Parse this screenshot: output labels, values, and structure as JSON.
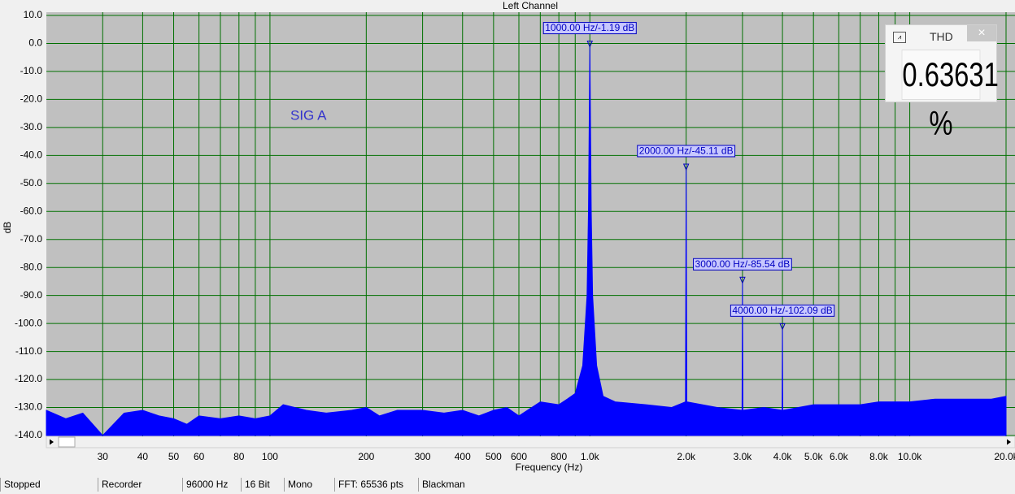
{
  "chart_data": {
    "type": "area",
    "title": "Left Channel",
    "xlabel": "Frequency (Hz)",
    "ylabel": "dB",
    "annotation": "SIG A",
    "color": "#0000ff",
    "log_x": true,
    "grid": true,
    "xlim": [
      20,
      20000
    ],
    "ylim": [
      -140,
      10
    ],
    "xticks": [
      30,
      40,
      50,
      60,
      80,
      100,
      200,
      300,
      400,
      500,
      600,
      800,
      {
        "value": 1000,
        "label": "1.0k"
      },
      {
        "value": 2000,
        "label": "2.0k"
      },
      {
        "value": 3000,
        "label": "3.0k"
      },
      {
        "value": 4000,
        "label": "4.0k"
      },
      {
        "value": 5000,
        "label": "5.0k"
      },
      {
        "value": 6000,
        "label": "6.0k"
      },
      {
        "value": 8000,
        "label": "8.0k"
      },
      {
        "value": 10000,
        "label": "10.0k"
      },
      {
        "value": 20000,
        "label": "20.0k"
      }
    ],
    "xticks_minor": [
      70,
      90,
      700,
      900,
      7000,
      9000
    ],
    "yticks": [
      {
        "value": 10,
        "label": "10.0"
      },
      {
        "value": 0,
        "label": "0.0"
      },
      {
        "value": -10,
        "label": "-10.0"
      },
      {
        "value": -20,
        "label": "-20.0"
      },
      {
        "value": -30,
        "label": "-30.0"
      },
      {
        "value": -40,
        "label": "-40.0"
      },
      {
        "value": -50,
        "label": "-50.0"
      },
      {
        "value": -60,
        "label": "-60.0"
      },
      {
        "value": -70,
        "label": "-70.0"
      },
      {
        "value": -80,
        "label": "-80.0"
      },
      {
        "value": -90,
        "label": "-90.0"
      },
      {
        "value": -100,
        "label": "-100.0"
      },
      {
        "value": -110,
        "label": "-110.0"
      },
      {
        "value": -120,
        "label": "-120.0"
      },
      {
        "value": -130,
        "label": "-130.0"
      },
      {
        "value": -140,
        "label": "-140.0"
      }
    ],
    "x": [
      20,
      23,
      26,
      30,
      35,
      40,
      45,
      50,
      55,
      60,
      70,
      80,
      90,
      100,
      110,
      130,
      150,
      180,
      200,
      220,
      250,
      300,
      350,
      400,
      450,
      500,
      550,
      600,
      700,
      800,
      850,
      900,
      950,
      980,
      990,
      1000,
      1010,
      1020,
      1050,
      1100,
      1200,
      1500,
      1800,
      1990,
      2000,
      2010,
      2500,
      2990,
      3000,
      3010,
      3500,
      3990,
      4000,
      4010,
      5000,
      6000,
      7000,
      8000,
      10000,
      12000,
      15000,
      18000,
      20000
    ],
    "values": [
      -131,
      -134,
      -132,
      -140,
      -132,
      -131,
      -133,
      -134,
      -136,
      -133,
      -134,
      -133,
      -134,
      -133,
      -129,
      -131,
      -132,
      -131,
      -130,
      -133,
      -131,
      -131,
      -132,
      -131,
      -133,
      -131,
      -130,
      -133,
      -128,
      -129,
      -127,
      -125,
      -115,
      -90,
      -60,
      -1.19,
      -60,
      -90,
      -115,
      -126,
      -128,
      -129,
      -130,
      -128,
      -45.11,
      -128,
      -130,
      -131,
      -85.54,
      -131,
      -130,
      -131,
      -102.09,
      -131,
      -129,
      -129,
      -129,
      -128,
      -128,
      -127,
      -127,
      -127,
      -126
    ],
    "markers": [
      {
        "x": 1000,
        "y": -1.19,
        "label": "1000.00 Hz/-1.19 dB"
      },
      {
        "x": 2000,
        "y": -45.11,
        "label": "2000.00 Hz/-45.11 dB"
      },
      {
        "x": 3000,
        "y": -85.54,
        "label": "3000.00 Hz/-85.54 dB"
      },
      {
        "x": 4000,
        "y": -102.09,
        "label": "4000.00 Hz/-102.09 dB"
      }
    ]
  },
  "thd_panel": {
    "title": "THD",
    "value": "0.63631 %"
  },
  "status_bar": [
    "Stopped",
    "Recorder",
    "96000 Hz",
    "16 Bit",
    "Mono",
    "FFT: 65536 pts",
    "Blackman"
  ]
}
